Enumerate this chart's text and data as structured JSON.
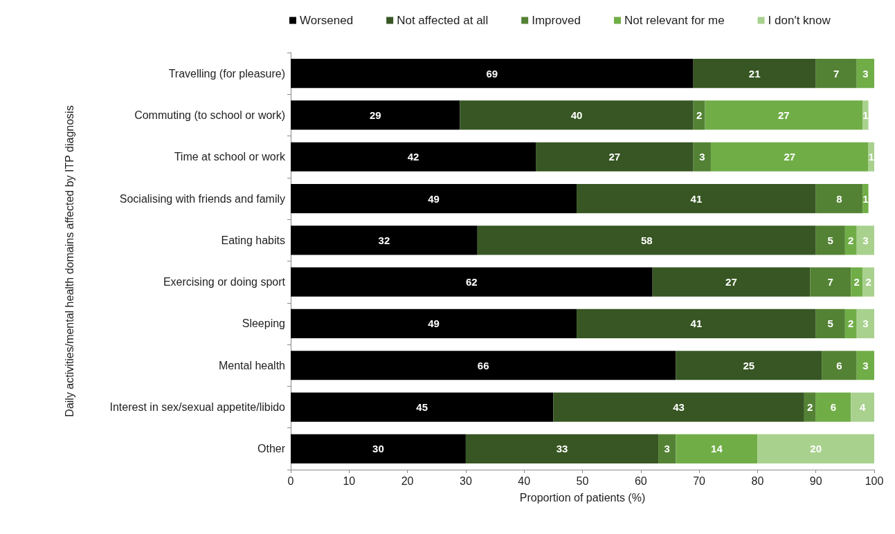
{
  "chart_data": {
    "type": "bar",
    "orientation": "horizontal",
    "stacked": true,
    "data_labels": true,
    "legend": "top",
    "grid": false,
    "xlabel": "Proportion of patients (%)",
    "ylabel": "Daily activities/mental health domains affected by ITP diagnosis",
    "xlim": [
      0,
      100
    ],
    "xticks": [
      0,
      10,
      20,
      30,
      40,
      50,
      60,
      70,
      80,
      90,
      100
    ],
    "categories": [
      "Travelling (for pleasure)",
      "Commuting (to school or work)",
      "Time at school or work",
      "Socialising with friends and family",
      "Eating habits",
      "Exercising or doing sport",
      "Sleeping",
      "Mental health",
      "Interest in sex/sexual appetite/libido",
      "Other"
    ],
    "series": [
      {
        "name": "Worsened",
        "color": "#000000",
        "values": [
          69,
          29,
          42,
          49,
          32,
          62,
          49,
          66,
          45,
          30
        ]
      },
      {
        "name": "Not affected at all",
        "color": "#375623",
        "values": [
          21,
          40,
          27,
          41,
          58,
          27,
          41,
          25,
          43,
          33
        ]
      },
      {
        "name": "Improved",
        "color": "#548235",
        "values": [
          7,
          2,
          3,
          8,
          5,
          7,
          5,
          6,
          2,
          3
        ]
      },
      {
        "name": "Not relevant for me",
        "color": "#70ad47",
        "values": [
          3,
          27,
          27,
          1,
          2,
          2,
          2,
          3,
          6,
          14
        ]
      },
      {
        "name": "I don't know",
        "color": "#a9d18e",
        "values": [
          null,
          1,
          1,
          null,
          3,
          2,
          3,
          null,
          4,
          20
        ]
      }
    ]
  }
}
